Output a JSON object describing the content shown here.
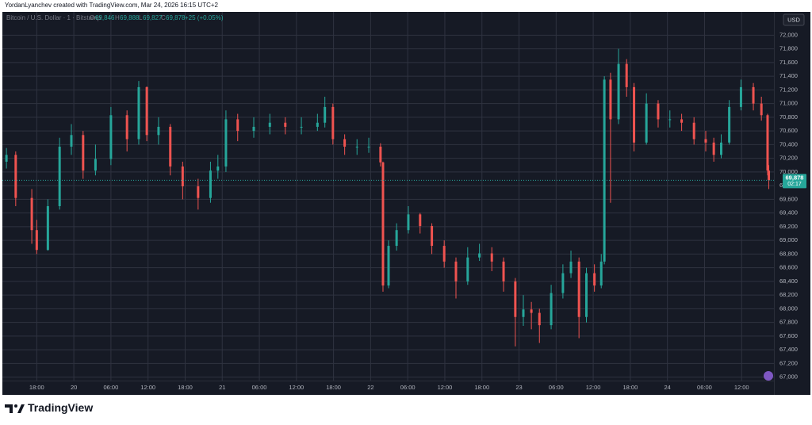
{
  "header": {
    "credit": "YordanLyanchev created with TradingView.com, Mar 24, 2026 16:15 UTC+2"
  },
  "chart_data": {
    "type": "candlestick",
    "symbol": "Bitcoin / U.S. Dollar · 1 · Bitstamp",
    "legend": {
      "o_key": "O",
      "o": "69,846",
      "h_key": "H",
      "h": "69,888",
      "l_key": "L",
      "l": "69,827",
      "c_key": "C",
      "c": "69,878",
      "change": "+25 (+0.05%)"
    },
    "currency": "USD",
    "last_price": {
      "value": 69878,
      "label": "69,878"
    },
    "countdown": "02:17",
    "up_color": "#26a69a",
    "down_color": "#ef5350",
    "grid": true,
    "xlim": [
      -11.3,
      113.1
    ],
    "xticks": [
      {
        "value": -6,
        "label": "18:00"
      },
      {
        "value": 0,
        "label": "20"
      },
      {
        "value": 6,
        "label": "06:00"
      },
      {
        "value": 12,
        "label": "12:00"
      },
      {
        "value": 18,
        "label": "18:00"
      },
      {
        "value": 24,
        "label": "21"
      },
      {
        "value": 30,
        "label": "06:00"
      },
      {
        "value": 36,
        "label": "12:00"
      },
      {
        "value": 42,
        "label": "18:00"
      },
      {
        "value": 48,
        "label": "22"
      },
      {
        "value": 54,
        "label": "06:00"
      },
      {
        "value": 60,
        "label": "12:00"
      },
      {
        "value": 66,
        "label": "18:00"
      },
      {
        "value": 72,
        "label": "23"
      },
      {
        "value": 78,
        "label": "06:00"
      },
      {
        "value": 84,
        "label": "12:00"
      },
      {
        "value": 90,
        "label": "18:00"
      },
      {
        "value": 96,
        "label": "24"
      },
      {
        "value": 102,
        "label": "06:00"
      },
      {
        "value": 108,
        "label": "12:00"
      }
    ],
    "ylim": [
      66950,
      72340
    ],
    "yticks": [
      {
        "value": 67000,
        "label": "67,000"
      },
      {
        "value": 67200,
        "label": "67,200"
      },
      {
        "value": 67400,
        "label": "67,400"
      },
      {
        "value": 67600,
        "label": "67,600"
      },
      {
        "value": 67800,
        "label": "67,800"
      },
      {
        "value": 68000,
        "label": "68,000"
      },
      {
        "value": 68200,
        "label": "68,200"
      },
      {
        "value": 68400,
        "label": "68,400"
      },
      {
        "value": 68600,
        "label": "68,600"
      },
      {
        "value": 68800,
        "label": "68,800"
      },
      {
        "value": 69000,
        "label": "69,000"
      },
      {
        "value": 69200,
        "label": "69,200"
      },
      {
        "value": 69400,
        "label": "69,400"
      },
      {
        "value": 69600,
        "label": "69,600"
      },
      {
        "value": 69800,
        "label": "69,800"
      },
      {
        "value": 70000,
        "label": "70,000"
      },
      {
        "value": 70200,
        "label": "70,200"
      },
      {
        "value": 70400,
        "label": "70,400"
      },
      {
        "value": 70600,
        "label": "70,600"
      },
      {
        "value": 70800,
        "label": "70,800"
      },
      {
        "value": 71000,
        "label": "71,000"
      },
      {
        "value": 71200,
        "label": "71,200"
      },
      {
        "value": 71400,
        "label": "71,400"
      },
      {
        "value": 71600,
        "label": "71,600"
      },
      {
        "value": 71800,
        "label": "71,800"
      },
      {
        "value": 72000,
        "label": "72,000"
      }
    ],
    "x": [
      -10.9,
      -9.4,
      -6.8,
      -6.0,
      -4.2,
      -2.3,
      -0.4,
      1.5,
      3.5,
      6.0,
      8.6,
      10.5,
      11.8,
      13.7,
      15.6,
      17.6,
      20.1,
      22.1,
      23.3,
      24.6,
      26.5,
      29.1,
      31.7,
      34.2,
      36.8,
      39.4,
      40.6,
      41.9,
      43.8,
      45.8,
      47.7,
      49.6,
      50.0,
      50.9,
      52.2,
      54.1,
      56.0,
      57.9,
      59.9,
      61.8,
      63.7,
      65.6,
      67.6,
      69.5,
      71.4,
      72.7,
      74.0,
      75.3,
      77.2,
      79.1,
      80.4,
      81.7,
      82.9,
      84.2,
      85.3,
      85.8,
      86.8,
      88.1,
      89.4,
      90.6,
      92.6,
      94.5,
      96.4,
      98.3,
      100.3,
      102.2,
      103.5,
      104.7,
      106.0,
      107.9,
      109.9,
      111.2,
      112.2,
      112.4
    ],
    "open": [
      70150,
      70250,
      69620,
      69150,
      68860,
      69500,
      70370,
      70540,
      70020,
      70190,
      70830,
      70480,
      71240,
      70540,
      70660,
      70080,
      69790,
      69620,
      70020,
      70080,
      70770,
      70600,
      70660,
      70720,
      70660,
      70660,
      70720,
      70950,
      70480,
      70370,
      70370,
      70370,
      70140,
      68340,
      68920,
      69150,
      69380,
      69210,
      68920,
      68690,
      68400,
      68750,
      68810,
      68690,
      68400,
      67880,
      67990,
      67940,
      67760,
      68230,
      68520,
      68690,
      67880,
      68520,
      68340,
      68690,
      71350,
      70770,
      71580,
      71240,
      70430,
      71000,
      70770,
      70770,
      70720,
      70480,
      70430,
      70250,
      70430,
      70950,
      71240,
      71000,
      70830,
      70020
    ],
    "high": [
      70350,
      70300,
      69750,
      69300,
      69600,
      70500,
      70700,
      70600,
      70400,
      70950,
      70900,
      71330,
      71250,
      70800,
      70700,
      70150,
      69900,
      70150,
      70250,
      70900,
      70850,
      70800,
      70850,
      70800,
      70800,
      70850,
      71100,
      71000,
      70550,
      70480,
      70500,
      70420,
      70150,
      69000,
      69250,
      69500,
      69400,
      69250,
      69000,
      68750,
      68900,
      68950,
      68900,
      68750,
      68450,
      68200,
      68100,
      68000,
      68350,
      68650,
      68850,
      68750,
      68600,
      68650,
      68800,
      71400,
      71450,
      71800,
      71650,
      71300,
      71150,
      71050,
      70900,
      70850,
      70800,
      70600,
      70500,
      70550,
      71050,
      71350,
      71300,
      71100,
      70850,
      70100
    ],
    "low": [
      70050,
      69500,
      68950,
      68800,
      68850,
      69450,
      70250,
      69900,
      69950,
      70100,
      70300,
      70400,
      70450,
      70400,
      69950,
      69600,
      69450,
      69550,
      69900,
      70000,
      70450,
      70500,
      70550,
      70550,
      70550,
      70600,
      70650,
      70400,
      70250,
      70250,
      70280,
      70080,
      68250,
      68300,
      68850,
      69100,
      69100,
      68800,
      68600,
      68150,
      68350,
      68700,
      68550,
      68250,
      67450,
      67750,
      67700,
      67500,
      67700,
      68150,
      68450,
      67570,
      67800,
      68250,
      68300,
      68650,
      69550,
      70700,
      71100,
      70300,
      70400,
      70650,
      70650,
      70600,
      70400,
      70300,
      70150,
      70200,
      70400,
      70900,
      70900,
      70750,
      69950,
      69750
    ],
    "close": [
      70250,
      69620,
      69150,
      68860,
      69500,
      70370,
      70540,
      70020,
      70190,
      70830,
      70480,
      71240,
      70540,
      70660,
      70080,
      69790,
      69620,
      70020,
      70080,
      70770,
      70600,
      70660,
      70720,
      70660,
      70660,
      70720,
      70950,
      70480,
      70370,
      70370,
      70370,
      70140,
      68340,
      68920,
      69150,
      69380,
      69210,
      68920,
      68690,
      68400,
      68750,
      68810,
      68690,
      68400,
      67880,
      67990,
      67940,
      67760,
      68230,
      68520,
      68690,
      67880,
      68520,
      68340,
      68690,
      71350,
      70770,
      71580,
      71240,
      70430,
      71000,
      70770,
      70770,
      70720,
      70480,
      70430,
      70250,
      70430,
      70950,
      71240,
      71000,
      70830,
      70020,
      69878
    ]
  },
  "footer": {
    "brand": "TradingView"
  }
}
